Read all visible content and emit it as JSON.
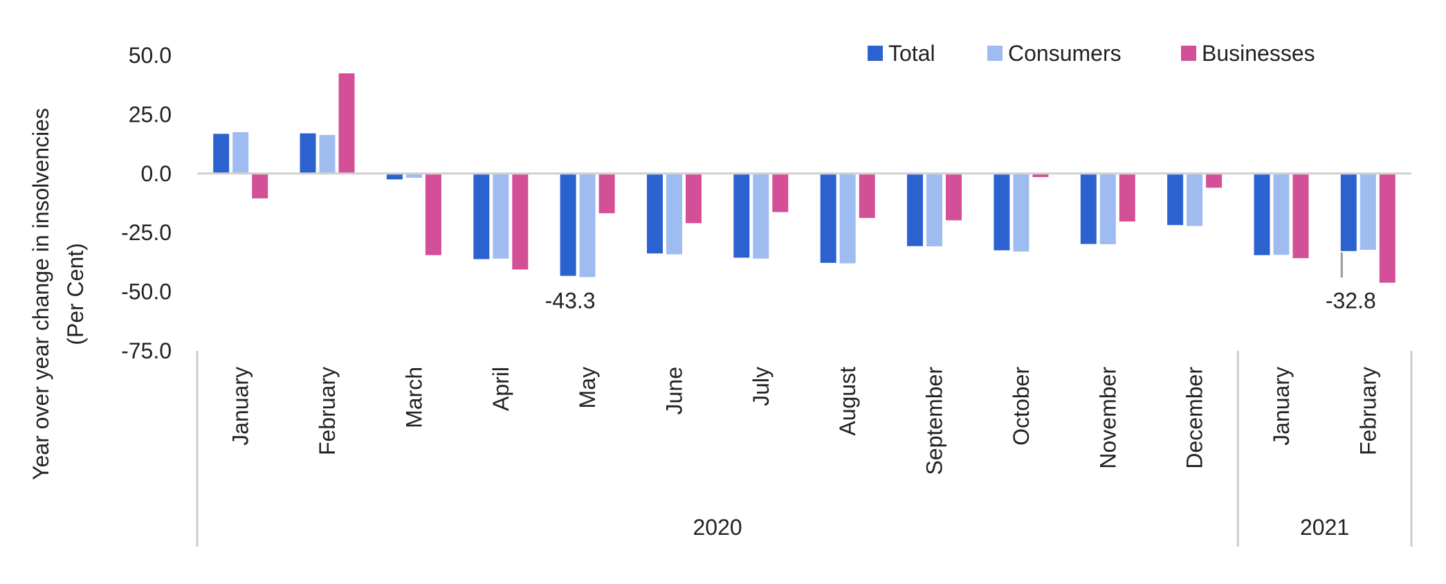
{
  "chart_data": {
    "type": "bar",
    "ylabel": [
      "Year over year change in insolvencies",
      "(Per Cent)"
    ],
    "ylim": [
      -75,
      50
    ],
    "yticks": [
      50,
      25,
      0,
      -25,
      -50,
      -75
    ],
    "ytick_labels": [
      "50.0",
      "25.0",
      "0.0",
      "-25.0",
      "-50.0",
      "-75.0"
    ],
    "categories": [
      "January",
      "February",
      "March",
      "April",
      "May",
      "June",
      "July",
      "August",
      "September",
      "October",
      "November",
      "December",
      "January",
      "February"
    ],
    "groups": [
      {
        "label": "2020",
        "count": 12
      },
      {
        "label": "2021",
        "count": 2
      }
    ],
    "series": [
      {
        "name": "Total",
        "color": "#2c62d0",
        "values": [
          16.8,
          17.0,
          -2.5,
          -36.2,
          -43.3,
          -33.8,
          -35.6,
          -37.8,
          -30.7,
          -32.5,
          -29.8,
          -21.8,
          -34.5,
          -32.8
        ]
      },
      {
        "name": "Consumers",
        "color": "#9fbcf1",
        "values": [
          17.5,
          16.3,
          -1.8,
          -36.0,
          -43.8,
          -34.2,
          -36.0,
          -38.0,
          -30.8,
          -33.0,
          -29.9,
          -22.2,
          -34.4,
          -32.3
        ]
      },
      {
        "name": "Businesses",
        "color": "#d34f98",
        "values": [
          -10.5,
          42.4,
          -34.5,
          -40.6,
          -16.8,
          -21.0,
          -16.3,
          -18.8,
          -19.8,
          -1.5,
          -20.3,
          -6.0,
          -35.8,
          -46.2
        ]
      }
    ],
    "annotations": [
      {
        "text": "-43.3",
        "category_index": 4
      },
      {
        "text": "-32.8",
        "category_index": 13
      }
    ],
    "legend_position": "top-right",
    "grid": false
  }
}
